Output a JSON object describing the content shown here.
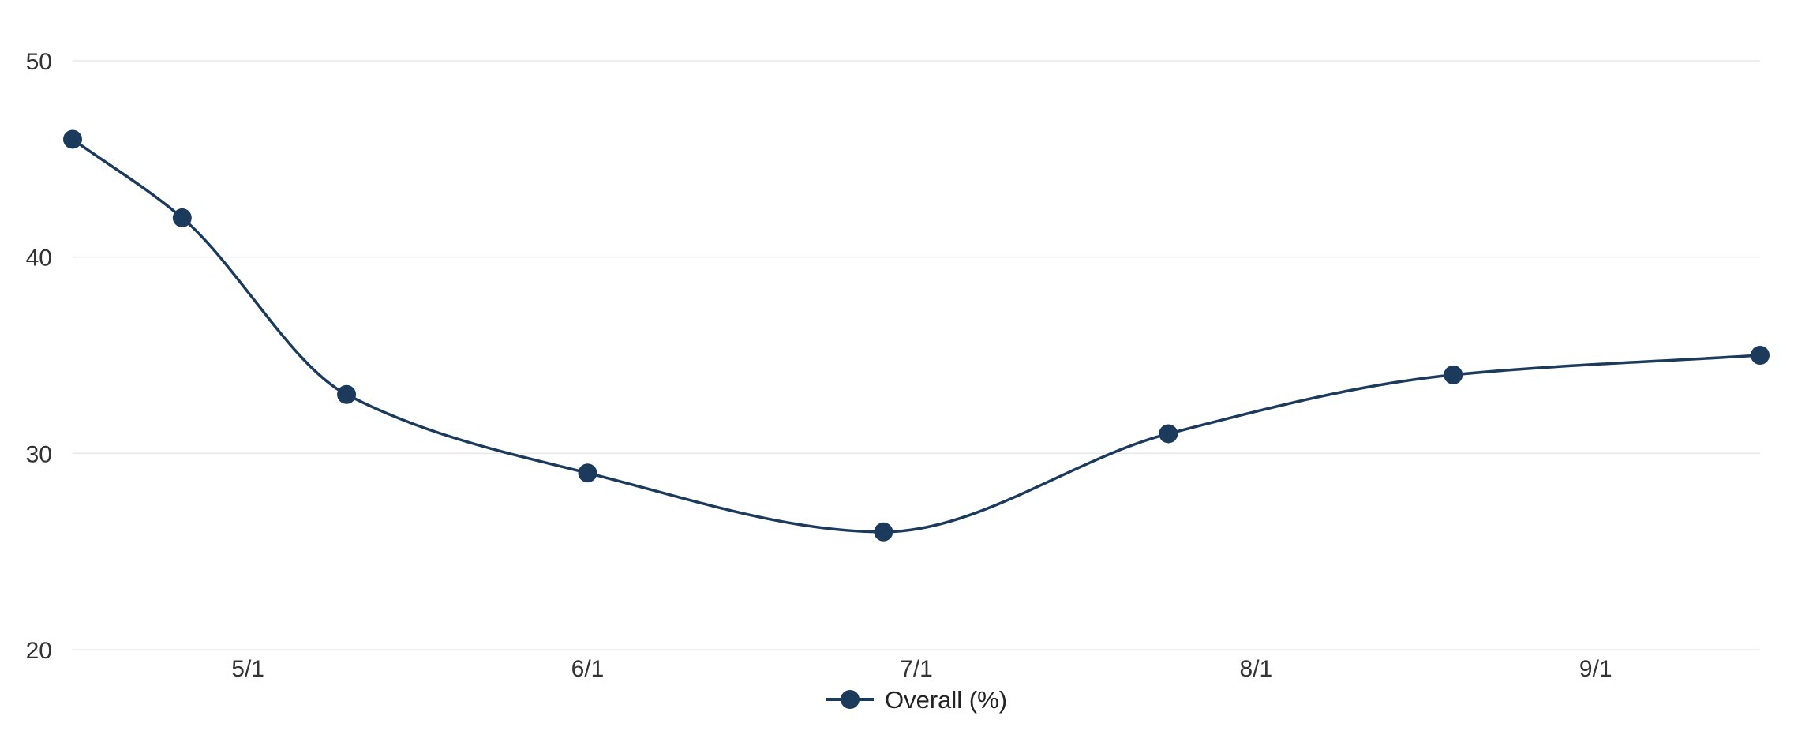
{
  "chart_data": {
    "type": "line",
    "title": "",
    "xlabel": "",
    "ylabel": "",
    "x_range": [
      "2025-04-15",
      "2025-09-16"
    ],
    "ylim": [
      20,
      50
    ],
    "yticks": [
      {
        "value": 20,
        "label": "20"
      },
      {
        "value": 30,
        "label": "30"
      },
      {
        "value": 40,
        "label": "40"
      },
      {
        "value": 50,
        "label": "50"
      }
    ],
    "xticks": [
      {
        "date": "2025-05-01",
        "label": "5/1"
      },
      {
        "date": "2025-06-01",
        "label": "6/1"
      },
      {
        "date": "2025-07-01",
        "label": "7/1"
      },
      {
        "date": "2025-08-01",
        "label": "8/1"
      },
      {
        "date": "2025-09-01",
        "label": "9/1"
      }
    ],
    "grid": true,
    "smooth": true,
    "legend_position": "bottom-center",
    "series": [
      {
        "name": "Overall (%)",
        "color": "#1b3a5c",
        "points": [
          {
            "date": "2025-04-15",
            "value": 46
          },
          {
            "date": "2025-04-25",
            "value": 42
          },
          {
            "date": "2025-05-10",
            "value": 33
          },
          {
            "date": "2025-06-01",
            "value": 29
          },
          {
            "date": "2025-06-28",
            "value": 26
          },
          {
            "date": "2025-07-24",
            "value": 31
          },
          {
            "date": "2025-08-19",
            "value": 34
          },
          {
            "date": "2025-09-16",
            "value": 35
          }
        ]
      }
    ]
  }
}
